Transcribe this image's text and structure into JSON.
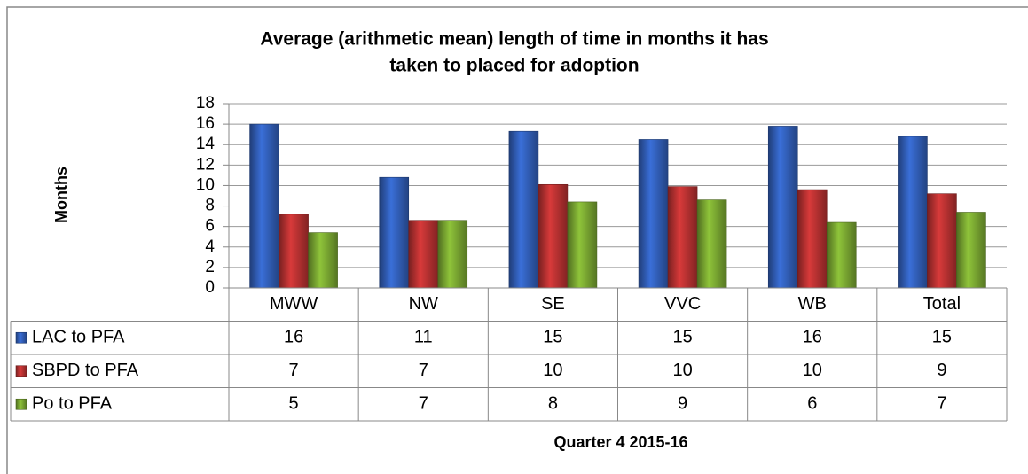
{
  "chart_data": {
    "type": "bar",
    "title": [
      "Average (arithmetic mean) length of time in months it has",
      "taken to placed for adoption"
    ],
    "y_label": "Months",
    "x_label": "Quarter 4 2015-16",
    "categories": [
      "MWW",
      "NW",
      "SE",
      "VVC",
      "WB",
      "Total"
    ],
    "series": [
      {
        "name": "LAC to PFA",
        "color": "#3a6fd8",
        "values": [
          16.0,
          10.8,
          15.3,
          14.5,
          15.8,
          14.8
        ],
        "value_labels": [
          "16",
          "11",
          "15",
          "15",
          "16",
          "15"
        ]
      },
      {
        "name": "SBPD to PFA",
        "color": "#d83a3a",
        "values": [
          7.2,
          6.6,
          10.1,
          9.9,
          9.6,
          9.2
        ],
        "value_labels": [
          "7",
          "7",
          "10",
          "10",
          "10",
          "9"
        ]
      },
      {
        "name": "Po to PFA",
        "color": "#8fc43a",
        "values": [
          5.4,
          6.6,
          8.4,
          8.6,
          6.4,
          7.4
        ],
        "value_labels": [
          "5",
          "7",
          "8",
          "9",
          "6",
          "7"
        ]
      }
    ],
    "ylim": [
      0,
      18
    ],
    "yticks": [
      0,
      2,
      4,
      6,
      8,
      10,
      12,
      14,
      16,
      18
    ],
    "grid": true,
    "data_table": true
  }
}
